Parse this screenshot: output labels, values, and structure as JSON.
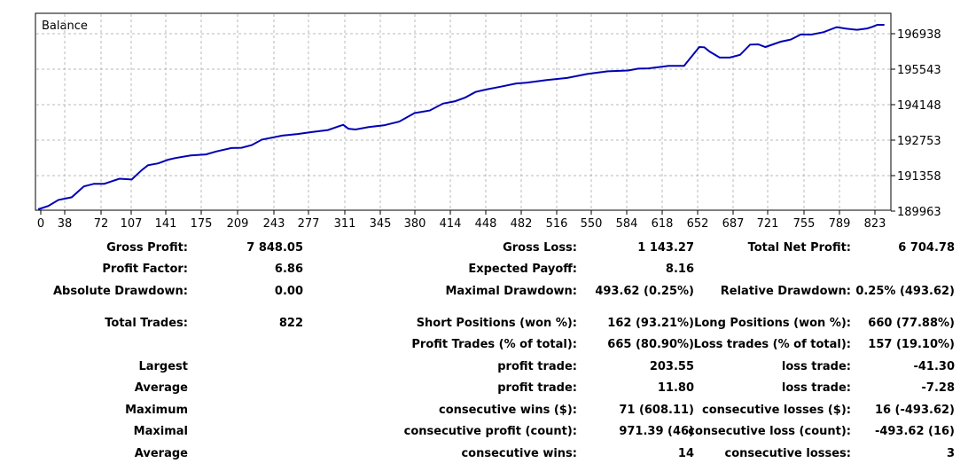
{
  "chart_data": {
    "type": "line",
    "title": "Balance",
    "x_ticks": [
      0,
      38,
      72,
      107,
      141,
      175,
      209,
      243,
      277,
      311,
      345,
      380,
      414,
      448,
      482,
      516,
      550,
      584,
      618,
      652,
      687,
      721,
      755,
      789,
      823
    ],
    "y_ticks": [
      "196938",
      "195543",
      "194148",
      "192753",
      "191358",
      "189963"
    ],
    "xlim": [
      0,
      834
    ],
    "ylim": [
      189963,
      197340
    ],
    "grid": true,
    "series": [
      {
        "color": "#0000b4",
        "x": [
          0,
          10,
          20,
          33,
          45,
          55,
          65,
          80,
          92,
          102,
          108,
          118,
          128,
          135,
          150,
          165,
          175,
          190,
          200,
          210,
          220,
          240,
          255,
          270,
          285,
          300,
          305,
          312,
          325,
          340,
          355,
          370,
          385,
          398,
          410,
          420,
          430,
          440,
          455,
          470,
          480,
          490,
          500,
          520,
          540,
          560,
          580,
          590,
          600,
          620,
          635,
          645,
          650,
          655,
          660,
          670,
          680,
          690,
          700,
          708,
          715,
          730,
          740,
          750,
          760,
          772,
          785,
          795,
          805,
          815,
          820,
          825,
          832
        ],
        "y": [
          189963,
          190090,
          190320,
          190420,
          190830,
          190930,
          190930,
          191120,
          191090,
          191450,
          191630,
          191700,
          191840,
          191900,
          192000,
          192040,
          192150,
          192280,
          192290,
          192390,
          192600,
          192750,
          192810,
          192890,
          192960,
          193160,
          193010,
          192980,
          193070,
          193140,
          193280,
          193600,
          193700,
          193960,
          194050,
          194190,
          194400,
          194490,
          194600,
          194720,
          194750,
          194800,
          194850,
          194930,
          195080,
          195180,
          195210,
          195280,
          195290,
          195390,
          195390,
          195860,
          196100,
          196090,
          195930,
          195700,
          195700,
          195800,
          196190,
          196200,
          196100,
          196300,
          196380,
          196580,
          196570,
          196660,
          196850,
          196790,
          196750,
          196800,
          196860,
          196938,
          196938
        ]
      }
    ]
  },
  "stats": {
    "rows": [
      {
        "c1_label": "Gross Profit:",
        "c1_value": "7 848.05",
        "c2_label": "Gross Loss:",
        "c2_value": "1 143.27",
        "c3_label": "Total Net Profit:",
        "c3_value": "6 704.78"
      },
      {
        "c1_label": "Profit Factor:",
        "c1_value": "6.86",
        "c2_label": "Expected Payoff:",
        "c2_value": "8.16",
        "c3_label": "",
        "c3_value": ""
      },
      {
        "c1_label": "Absolute Drawdown:",
        "c1_value": "0.00",
        "c2_label": "Maximal Drawdown:",
        "c2_value": "493.62 (0.25%)",
        "c3_label": "Relative Drawdown:",
        "c3_value": "0.25% (493.62)"
      },
      {
        "c1_label": "Total Trades:",
        "c1_value": "822",
        "c2_label": "Short Positions (won %):",
        "c2_value": "162 (93.21%)",
        "c3_label": "Long Positions (won %):",
        "c3_value": "660 (77.88%)"
      },
      {
        "c1_label": "",
        "c1_value": "",
        "c2_label": "Profit Trades (% of total):",
        "c2_value": "665 (80.90%)",
        "c3_label": "Loss trades (% of total):",
        "c3_value": "157 (19.10%)"
      },
      {
        "c1_label": "Largest",
        "c1_value": "",
        "c2_label": "profit trade:",
        "c2_value": "203.55",
        "c3_label": "loss trade:",
        "c3_value": "-41.30"
      },
      {
        "c1_label": "Average",
        "c1_value": "",
        "c2_label": "profit trade:",
        "c2_value": "11.80",
        "c3_label": "loss trade:",
        "c3_value": "-7.28"
      },
      {
        "c1_label": "Maximum",
        "c1_value": "",
        "c2_label": "consecutive wins ($):",
        "c2_value": "71 (608.11)",
        "c3_label": "consecutive losses ($):",
        "c3_value": "16 (-493.62)"
      },
      {
        "c1_label": "Maximal",
        "c1_value": "",
        "c2_label": "consecutive profit (count):",
        "c2_value": "971.39 (46)",
        "c3_label": "consecutive loss (count):",
        "c3_value": "-493.62 (16)"
      },
      {
        "c1_label": "Average",
        "c1_value": "",
        "c2_label": "consecutive wins:",
        "c2_value": "14",
        "c3_label": "consecutive losses:",
        "c3_value": "3"
      }
    ]
  }
}
